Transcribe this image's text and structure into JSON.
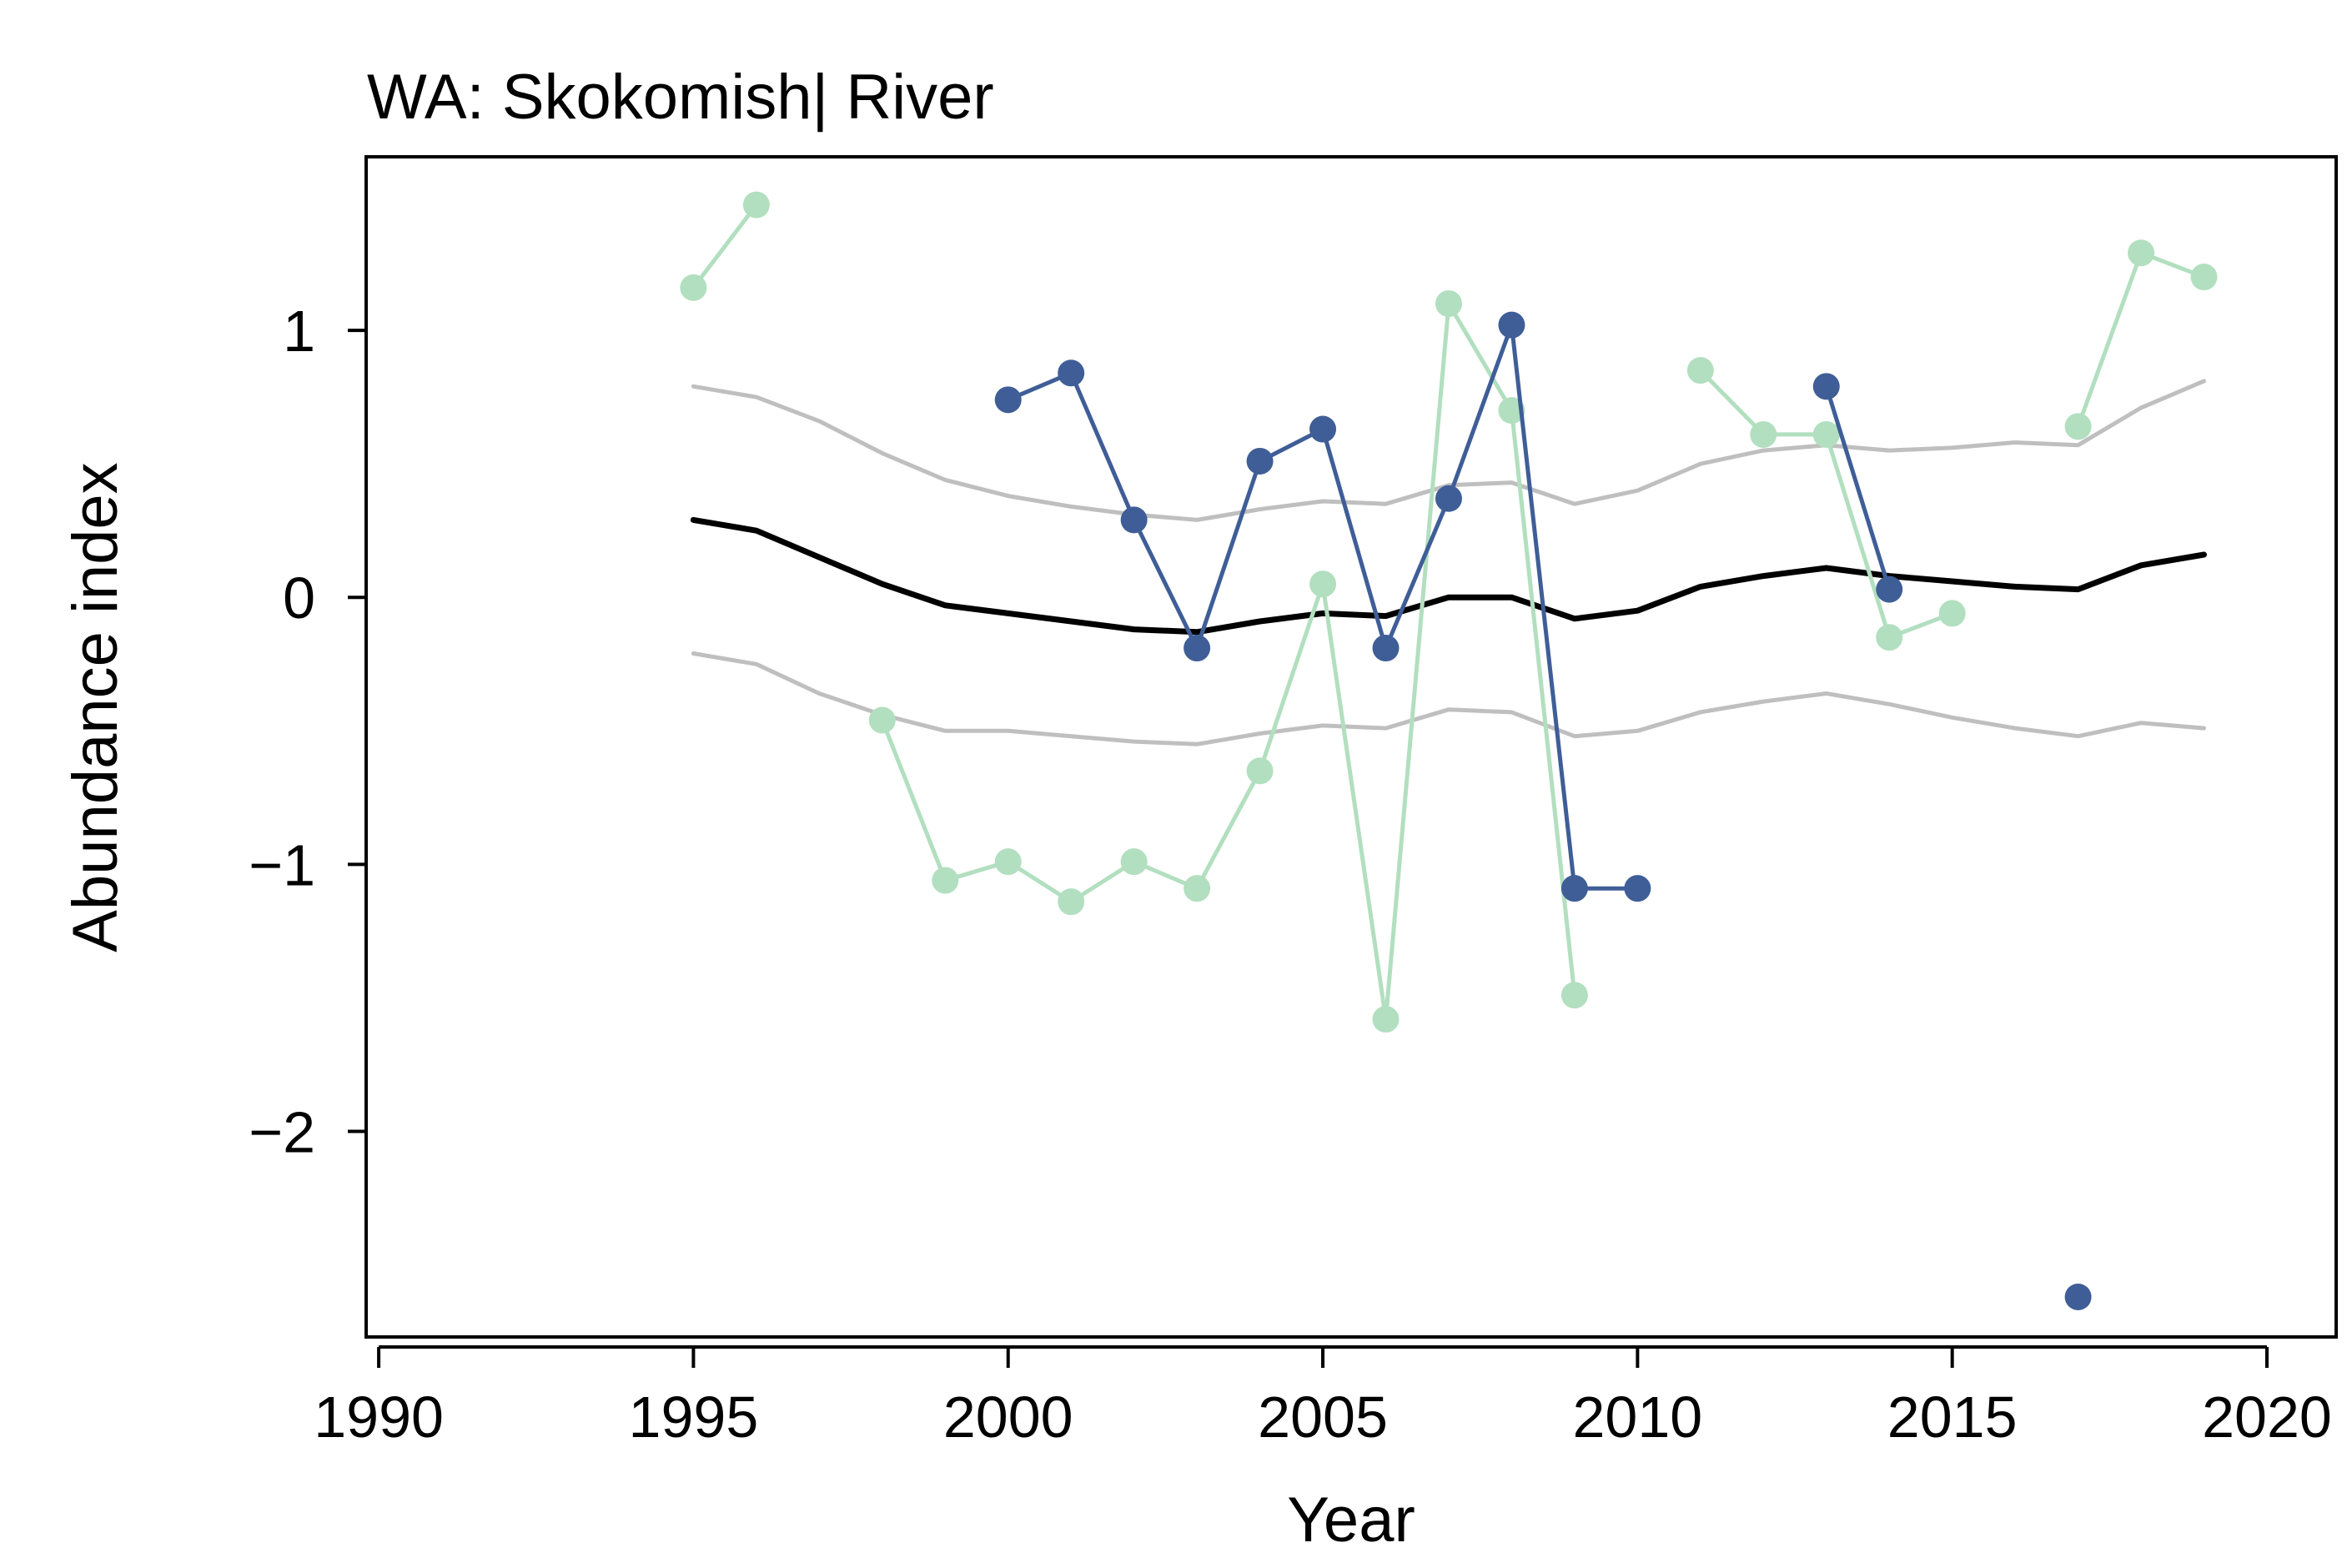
{
  "chart_data": {
    "type": "line",
    "title": "WA: Skokomish| River",
    "xlabel": "Year",
    "ylabel": "Abundance index",
    "xlim": [
      1989.8,
      2021.1
    ],
    "ylim": [
      -2.77,
      1.65
    ],
    "x_ticks": [
      {
        "value": 1990,
        "label": "1990"
      },
      {
        "value": 1995,
        "label": "1995"
      },
      {
        "value": 2000,
        "label": "2000"
      },
      {
        "value": 2005,
        "label": "2005"
      },
      {
        "value": 2010,
        "label": "2010"
      },
      {
        "value": 2015,
        "label": "2015"
      },
      {
        "value": 2020,
        "label": "2020"
      }
    ],
    "y_ticks": [
      {
        "value": 1,
        "label": "1"
      },
      {
        "value": 0,
        "label": "0"
      },
      {
        "value": -1,
        "label": "−1"
      },
      {
        "value": -2,
        "label": "−2"
      }
    ],
    "grid": false,
    "series": [
      {
        "style": "line",
        "color": "#bfbfbf",
        "points": [
          [
            1995,
            0.79
          ],
          [
            1996,
            0.75
          ],
          [
            1997,
            0.66
          ],
          [
            1998,
            0.54
          ],
          [
            1999,
            0.44
          ],
          [
            2000,
            0.38
          ],
          [
            2001,
            0.34
          ],
          [
            2002,
            0.31
          ],
          [
            2003,
            0.29
          ],
          [
            2004,
            0.33
          ],
          [
            2005,
            0.36
          ],
          [
            2006,
            0.35
          ],
          [
            2007,
            0.42
          ],
          [
            2008,
            0.43
          ],
          [
            2009,
            0.35
          ],
          [
            2010,
            0.4
          ],
          [
            2011,
            0.5
          ],
          [
            2012,
            0.55
          ],
          [
            2013,
            0.57
          ],
          [
            2014,
            0.55
          ],
          [
            2015,
            0.56
          ],
          [
            2016,
            0.58
          ],
          [
            2017,
            0.57
          ],
          [
            2018,
            0.71
          ],
          [
            2019,
            0.81
          ]
        ]
      },
      {
        "style": "line",
        "color": "#bfbfbf",
        "points": [
          [
            1995,
            -0.21
          ],
          [
            1996,
            -0.25
          ],
          [
            1997,
            -0.36
          ],
          [
            1998,
            -0.44
          ],
          [
            1999,
            -0.5
          ],
          [
            2000,
            -0.5
          ],
          [
            2001,
            -0.52
          ],
          [
            2002,
            -0.54
          ],
          [
            2003,
            -0.55
          ],
          [
            2004,
            -0.51
          ],
          [
            2005,
            -0.48
          ],
          [
            2006,
            -0.49
          ],
          [
            2007,
            -0.42
          ],
          [
            2008,
            -0.43
          ],
          [
            2009,
            -0.52
          ],
          [
            2010,
            -0.5
          ],
          [
            2011,
            -0.43
          ],
          [
            2012,
            -0.39
          ],
          [
            2013,
            -0.36
          ],
          [
            2014,
            -0.4
          ],
          [
            2015,
            -0.45
          ],
          [
            2016,
            -0.49
          ],
          [
            2017,
            -0.52
          ],
          [
            2018,
            -0.47
          ],
          [
            2019,
            -0.49
          ]
        ]
      },
      {
        "style": "line",
        "color": "#000000",
        "points": [
          [
            1995,
            0.29
          ],
          [
            1996,
            0.25
          ],
          [
            1997,
            0.15
          ],
          [
            1998,
            0.05
          ],
          [
            1999,
            -0.03
          ],
          [
            2000,
            -0.06
          ],
          [
            2001,
            -0.09
          ],
          [
            2002,
            -0.12
          ],
          [
            2003,
            -0.13
          ],
          [
            2004,
            -0.09
          ],
          [
            2005,
            -0.06
          ],
          [
            2006,
            -0.07
          ],
          [
            2007,
            0.0
          ],
          [
            2008,
            0.0
          ],
          [
            2009,
            -0.08
          ],
          [
            2010,
            -0.05
          ],
          [
            2011,
            0.04
          ],
          [
            2012,
            0.08
          ],
          [
            2013,
            0.11
          ],
          [
            2014,
            0.08
          ],
          [
            2015,
            0.06
          ],
          [
            2016,
            0.04
          ],
          [
            2017,
            0.03
          ],
          [
            2018,
            0.12
          ],
          [
            2019,
            0.16
          ]
        ]
      },
      {
        "style": "line-points",
        "color": "#b2dfbf",
        "segments": [
          [
            [
              1995,
              1.16
            ],
            [
              1996,
              1.47
            ]
          ],
          [
            [
              1998,
              -0.46
            ],
            [
              1999,
              -1.06
            ],
            [
              2000,
              -0.99
            ],
            [
              2001,
              -1.14
            ],
            [
              2002,
              -0.99
            ],
            [
              2003,
              -1.09
            ],
            [
              2004,
              -0.65
            ],
            [
              2005,
              0.05
            ],
            [
              2006,
              -1.58
            ],
            [
              2007,
              1.1
            ],
            [
              2008,
              0.7
            ],
            [
              2009,
              -1.49
            ]
          ],
          [
            [
              2011,
              0.85
            ],
            [
              2012,
              0.61
            ],
            [
              2013,
              0.61
            ],
            [
              2014,
              -0.15
            ],
            [
              2015,
              -0.06
            ]
          ],
          [
            [
              2017,
              0.64
            ],
            [
              2018,
              1.29
            ],
            [
              2019,
              1.2
            ]
          ]
        ]
      },
      {
        "style": "line-points",
        "color": "#3f5e97",
        "segments": [
          [
            [
              2000,
              0.74
            ],
            [
              2001,
              0.84
            ],
            [
              2002,
              0.29
            ],
            [
              2003,
              -0.19
            ],
            [
              2004,
              0.51
            ],
            [
              2005,
              0.63
            ],
            [
              2006,
              -0.19
            ],
            [
              2007,
              0.37
            ],
            [
              2008,
              1.02
            ],
            [
              2009,
              -1.09
            ],
            [
              2010,
              -1.09
            ]
          ],
          [
            [
              2013,
              0.79
            ],
            [
              2014,
              0.03
            ]
          ],
          [
            [
              2017,
              -2.62
            ]
          ]
        ]
      }
    ]
  }
}
